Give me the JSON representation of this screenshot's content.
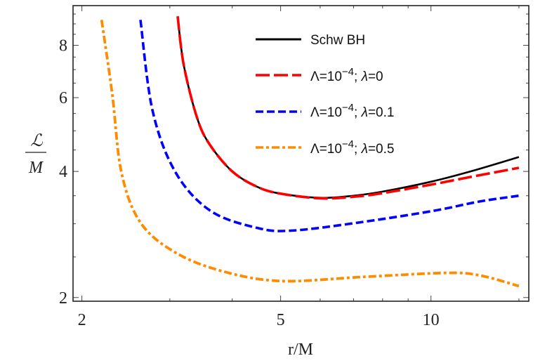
{
  "chart_data": {
    "type": "line",
    "title": "",
    "xlabel": "r/M",
    "ylabel": {
      "numerator": "ℒ",
      "denominator": "M"
    },
    "xscale": "log",
    "yscale": "log",
    "xlim": [
      1.92,
      15.7
    ],
    "ylim": [
      1.96,
      9.95
    ],
    "grid": false,
    "legend_placement": "top-right",
    "x_major_ticks": [
      2,
      5,
      10
    ],
    "x_minor_ticks": [
      3,
      4,
      6,
      7,
      8,
      9,
      15
    ],
    "y_major_ticks": [
      2,
      4,
      6,
      8
    ],
    "y_minor_ticks": [
      2.5,
      3,
      3.5,
      4.5,
      5,
      5.5,
      6.5,
      7,
      7.5,
      8.5,
      9,
      9.5
    ],
    "x_tick_labels": [
      "2",
      "5",
      "10"
    ],
    "y_tick_labels": [
      "2",
      "4",
      "6",
      "8"
    ],
    "series": [
      {
        "name": "Schw BH",
        "color": "#000000",
        "style": "solid",
        "x": [
          3.11,
          3.2,
          3.4,
          3.6,
          4,
          4.5,
          5,
          6,
          7,
          8,
          10,
          12,
          15
        ],
        "y": [
          9.38,
          7.16,
          5.38,
          4.65,
          4.0,
          3.67,
          3.54,
          3.46,
          3.5,
          3.58,
          3.78,
          4.0,
          4.33
        ]
      },
      {
        "name_parts": [
          "Λ=10",
          "−4",
          "; ",
          "λ",
          "=0"
        ],
        "color": "#ff0000",
        "style": "long-dash",
        "x": [
          3.11,
          3.2,
          3.4,
          3.6,
          4,
          4.5,
          5,
          6,
          7,
          8,
          10,
          12,
          15
        ],
        "y": [
          9.38,
          7.16,
          5.38,
          4.65,
          4.0,
          3.67,
          3.54,
          3.45,
          3.48,
          3.55,
          3.72,
          3.88,
          4.08
        ]
      },
      {
        "name_parts": [
          "Λ=10",
          "−4",
          "; ",
          "λ",
          "=0.1"
        ],
        "color": "#0000ff",
        "style": "dash",
        "x": [
          2.62,
          2.77,
          3.08,
          3.62,
          4.5,
          5.28,
          7.16,
          10.1,
          12.5,
          15
        ],
        "y": [
          9.2,
          5.59,
          3.98,
          3.22,
          2.93,
          2.89,
          3.02,
          3.22,
          3.39,
          3.5
        ]
      },
      {
        "name_parts": [
          "Λ=10",
          "−4",
          "; ",
          "λ",
          "=0.5"
        ],
        "color": "#ff8c00",
        "style": "dot-dash",
        "x": [
          2.19,
          2.3,
          2.4,
          2.62,
          3.08,
          3.83,
          5,
          7.31,
          10.7,
          12.5,
          15
        ],
        "y": [
          9.2,
          6.13,
          3.98,
          3.02,
          2.56,
          2.31,
          2.19,
          2.24,
          2.29,
          2.26,
          2.13
        ]
      }
    ]
  }
}
